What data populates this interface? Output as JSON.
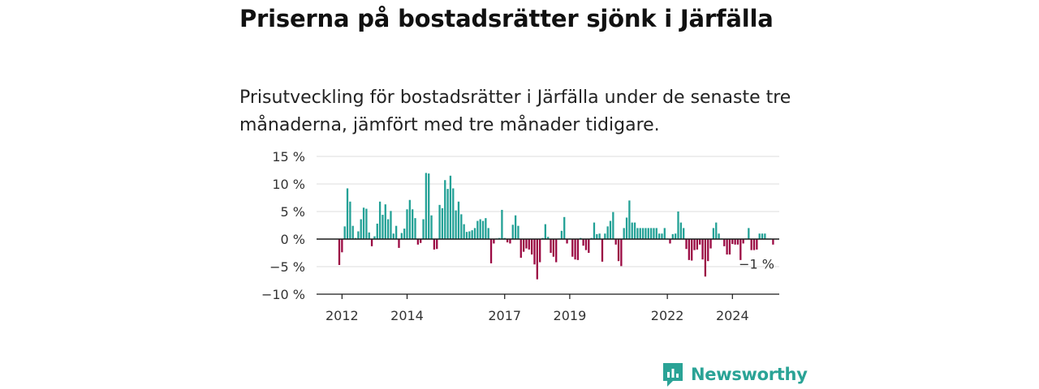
{
  "header": {
    "title": "Priserna på bostadsrätter sjönk i Järfälla",
    "subtitle": "Prisutveckling för bostadsrätter i Järfälla under de senaste tre månaderna, jämfört med tre månader tidigare."
  },
  "brand": {
    "name": "Newsworthy",
    "icon": "newsworthy-logo-icon",
    "color": "#2aa396"
  },
  "chart_data": {
    "type": "bar",
    "ylim": [
      -10,
      15
    ],
    "yticks": [
      15,
      10,
      5,
      0,
      -5,
      -10
    ],
    "ytick_labels": [
      "15 %",
      "10 %",
      "5 %",
      "0 %",
      "−5 %",
      "−10 %"
    ],
    "xticks": [
      {
        "label": "2012",
        "index": 1
      },
      {
        "label": "2014",
        "index": 25
      },
      {
        "label": "2017",
        "index": 61
      },
      {
        "label": "2019",
        "index": 85
      },
      {
        "label": "2022",
        "index": 121
      },
      {
        "label": "2024",
        "index": 145
      }
    ],
    "start": "2012-01",
    "positive_color": "#23a196",
    "negative_color": "#9b0a43",
    "grid": true,
    "last_value_label": "−1 %",
    "values": [
      -4.7,
      -2.4,
      2.3,
      9.2,
      6.8,
      2.4,
      0.2,
      1.4,
      3.6,
      5.7,
      5.5,
      1.2,
      -1.3,
      0.5,
      2.8,
      6.8,
      4.4,
      6.3,
      3.6,
      5.1,
      1.0,
      2.4,
      -1.6,
      1.1,
      1.9,
      5.4,
      7.1,
      5.4,
      3.8,
      -1.0,
      -0.7,
      3.6,
      12.0,
      11.9,
      4.3,
      -1.9,
      -1.8,
      6.2,
      5.6,
      10.7,
      9.1,
      11.5,
      9.2,
      5.2,
      6.8,
      4.5,
      2.7,
      1.3,
      1.4,
      1.6,
      2.0,
      3.3,
      3.6,
      3.3,
      3.8,
      2.0,
      -4.4,
      -0.8,
      0.1,
      0.2,
      5.3,
      0.2,
      -0.6,
      -0.8,
      2.6,
      4.3,
      2.4,
      -3.4,
      -2.3,
      -1.7,
      -1.9,
      -2.8,
      -4.6,
      -7.3,
      -4.2,
      0.2,
      2.7,
      0.4,
      -2.5,
      -3.2,
      -4.2,
      0.1,
      1.5,
      4.0,
      -0.8,
      0.1,
      -3.2,
      -3.7,
      -3.8,
      0.2,
      -1.2,
      -2.0,
      -2.5,
      0.2,
      3.0,
      0.9,
      1.0,
      -4.1,
      1.0,
      2.3,
      3.3,
      4.9,
      -1.0,
      -4.0,
      -4.9,
      2.0,
      3.9,
      7.0,
      3.0,
      3.0,
      2.0,
      2.0,
      2.0,
      2.0,
      2.0,
      2.0,
      2.0,
      2.0,
      1.0,
      1.0,
      2.0,
      0.1,
      -0.8,
      0.9,
      1.0,
      5.0,
      3.0,
      2.0,
      -1.8,
      -3.8,
      -3.9,
      -2.0,
      -1.9,
      -1.0,
      -3.7,
      -6.8,
      -4.0,
      -1.7,
      2.0,
      3.0,
      1.0,
      0.1,
      -1.3,
      -2.8,
      -2.8,
      -0.9,
      -1.0,
      -1.0,
      -3.8,
      -0.8,
      0.1,
      2.0,
      -2.0,
      -2.0,
      -1.9,
      1.0,
      1.0,
      1.0,
      0.1,
      0.1,
      -1.0
    ]
  }
}
